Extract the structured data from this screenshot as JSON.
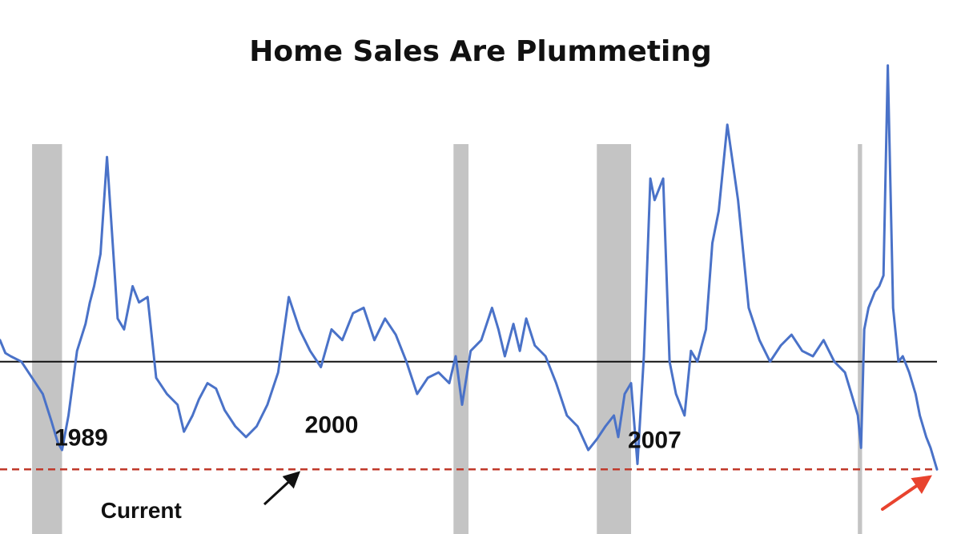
{
  "chart_data": {
    "type": "line",
    "title": "Home Sales Are Plummeting",
    "xlabel": "",
    "ylabel": "",
    "grid": false,
    "legend": "none",
    "colors": {
      "line": "#4a72c8",
      "baseline": "#111111",
      "current_line": "#c0392b",
      "recession": "#c4c4c4",
      "arrow": "#e8432e",
      "pointer": "#111111"
    },
    "x_range": [
      1980,
      2023.8
    ],
    "y_range": [
      -1.6,
      2.8
    ],
    "recessions": [
      [
        1981.5,
        1982.9
      ],
      [
        2001.2,
        2001.9
      ],
      [
        2007.9,
        2009.5
      ],
      [
        2020.1,
        2020.3
      ]
    ],
    "baseline_value": 0,
    "current_value": -1.0,
    "annotations": [
      {
        "text": "1989",
        "x": 1983.8,
        "y": -0.78
      },
      {
        "text": "2000",
        "x": 1995.5,
        "y": -0.66
      },
      {
        "text": "2007",
        "x": 2010.6,
        "y": -0.8
      },
      {
        "text": "Current",
        "x": 1986.6,
        "y": -1.45
      }
    ],
    "series": [
      {
        "x": [
          1980.0,
          1980.25,
          1980.5,
          1981.0,
          1981.5,
          1982.0,
          1982.4,
          1982.7,
          1982.9,
          1983.2,
          1983.6,
          1984.0,
          1984.2,
          1984.4,
          1984.7,
          1985.0,
          1985.3,
          1985.5,
          1985.8,
          1986.2,
          1986.5,
          1986.9,
          1987.3,
          1987.8,
          1988.3,
          1988.6,
          1989.0,
          1989.3,
          1989.7,
          1990.1,
          1990.5,
          1991.0,
          1991.5,
          1992.0,
          1992.5,
          1993.0,
          1993.5,
          1994.0,
          1994.5,
          1995.0,
          1995.5,
          1996.0,
          1996.5,
          1997.0,
          1997.5,
          1998.0,
          1998.5,
          1999.0,
          1999.5,
          2000.0,
          2000.5,
          2001.0,
          2001.3,
          2001.6,
          2002.0,
          2002.5,
          2003.0,
          2003.3,
          2003.6,
          2004.0,
          2004.3,
          2004.6,
          2005.0,
          2005.5,
          2006.0,
          2006.5,
          2007.0,
          2007.5,
          2007.9,
          2008.3,
          2008.7,
          2008.9,
          2009.2,
          2009.5,
          2009.8,
          2010.1,
          2010.4,
          2010.6,
          2011.0,
          2011.3,
          2011.6,
          2012.0,
          2012.3,
          2012.6,
          2013.0,
          2013.3,
          2013.6,
          2014.0,
          2014.5,
          2015.0,
          2015.5,
          2016.0,
          2016.5,
          2017.0,
          2017.5,
          2018.0,
          2018.5,
          2019.0,
          2019.5,
          2019.8,
          2020.1,
          2020.25,
          2020.4,
          2020.6,
          2020.9,
          2021.1,
          2021.3,
          2021.5,
          2021.75,
          2022.0,
          2022.2,
          2022.5,
          2022.8,
          2023.0,
          2023.3,
          2023.5,
          2023.8
        ],
        "values": [
          0.2,
          0.08,
          0.05,
          0.0,
          -0.15,
          -0.3,
          -0.55,
          -0.75,
          -0.82,
          -0.5,
          0.1,
          0.35,
          0.55,
          0.7,
          1.0,
          1.9,
          1.0,
          0.4,
          0.3,
          0.7,
          0.55,
          0.6,
          -0.15,
          -0.3,
          -0.4,
          -0.65,
          -0.5,
          -0.35,
          -0.2,
          -0.25,
          -0.45,
          -0.6,
          -0.7,
          -0.6,
          -0.4,
          -0.1,
          0.6,
          0.3,
          0.1,
          -0.05,
          0.3,
          0.2,
          0.45,
          0.5,
          0.2,
          0.4,
          0.25,
          0.0,
          -0.3,
          -0.15,
          -0.1,
          -0.2,
          0.05,
          -0.4,
          0.1,
          0.2,
          0.5,
          0.3,
          0.05,
          0.35,
          0.1,
          0.4,
          0.15,
          0.05,
          -0.2,
          -0.5,
          -0.6,
          -0.82,
          -0.72,
          -0.6,
          -0.5,
          -0.7,
          -0.3,
          -0.2,
          -0.95,
          0.05,
          1.7,
          1.5,
          1.7,
          0.0,
          -0.3,
          -0.5,
          0.1,
          0.0,
          0.3,
          1.1,
          1.4,
          2.2,
          1.5,
          0.5,
          0.2,
          0.0,
          0.15,
          0.25,
          0.1,
          0.05,
          0.2,
          0.0,
          -0.1,
          -0.3,
          -0.5,
          -0.8,
          0.3,
          0.5,
          0.65,
          0.7,
          0.8,
          2.75,
          0.5,
          0.0,
          0.05,
          -0.1,
          -0.3,
          -0.5,
          -0.7,
          -0.8,
          -1.0
        ]
      }
    ]
  }
}
